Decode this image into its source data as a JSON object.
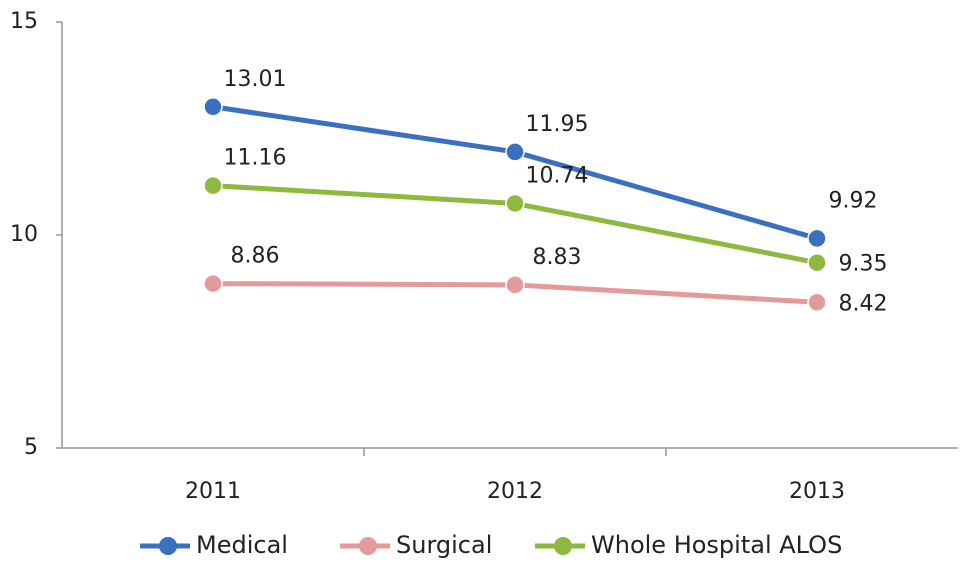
{
  "chart_data": {
    "type": "line",
    "categories": [
      "2011",
      "2012",
      "2013"
    ],
    "series": [
      {
        "name": "Medical",
        "color": "#3b6fc0",
        "values": [
          13.01,
          11.95,
          9.92
        ]
      },
      {
        "name": "Surgical",
        "color": "#e39a9a",
        "values": [
          8.86,
          8.83,
          8.42
        ]
      },
      {
        "name": "Whole Hospital ALOS",
        "color": "#8dba3e",
        "values": [
          11.16,
          10.74,
          9.35
        ]
      }
    ],
    "ylim": [
      5,
      15
    ],
    "yticks": [
      5,
      10,
      15
    ],
    "grid": false,
    "legend": "bottom"
  }
}
